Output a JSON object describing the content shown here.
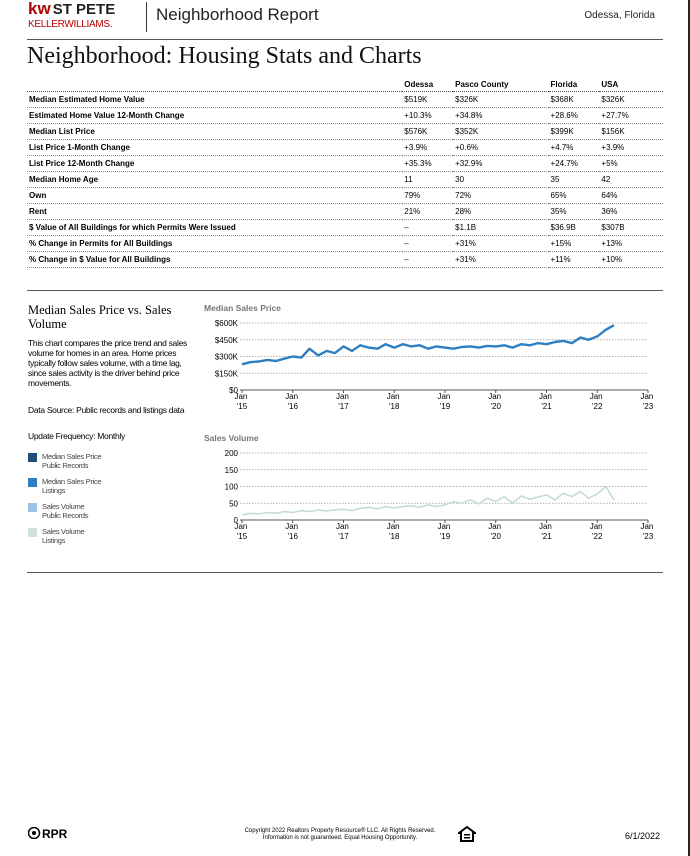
{
  "header": {
    "logo_kw": "kw",
    "logo_office": "ST PETE",
    "logo_brand": "KELLERWILLIAMS.",
    "report": "Neighborhood Report",
    "location": "Odessa, Florida"
  },
  "title": "Neighborhood: Housing Stats and Charts",
  "table": {
    "columns": [
      "Odessa",
      "Pasco County",
      "Florida",
      "USA"
    ],
    "rows": [
      [
        "Median Estimated Home Value",
        "$519K",
        "$326K",
        "$368K",
        "$326K"
      ],
      [
        "Estimated Home Value 12-Month Change",
        "+10.3%",
        "+34.8%",
        "+28.6%",
        "+27.7%"
      ],
      [
        "Median List Price",
        "$576K",
        "$352K",
        "$399K",
        "$156K"
      ],
      [
        "List Price 1-Month Change",
        "+3.9%",
        "+0.6%",
        "+4.7%",
        "+3.9%"
      ],
      [
        "List Price 12-Month Change",
        "+35.3%",
        "+32.9%",
        "+24.7%",
        "+5%"
      ],
      [
        "Median Home Age",
        "11",
        "30",
        "35",
        "42"
      ],
      [
        "Own",
        "79%",
        "72%",
        "65%",
        "64%"
      ],
      [
        "Rent",
        "21%",
        "28%",
        "35%",
        "36%"
      ],
      [
        "$ Value of All Buildings for which Permits Were Issued",
        "–",
        "$1.1B",
        "$36.9B",
        "$307B"
      ],
      [
        "% Change in Permits for All Buildings",
        "–",
        "+31%",
        "+15%",
        "+13%"
      ],
      [
        "% Change in $ Value for All Buildings",
        "–",
        "+31%",
        "+11%",
        "+10%"
      ]
    ]
  },
  "sidebar": {
    "title": "Median Sales Price vs. Sales Volume",
    "description": "This chart compares the price trend and sales volume for homes in an area. Home prices typically follow sales volume, with a time lag, since sales activity is the driver behind price movements.",
    "source": "Data Source: Public records and listings data",
    "frequency": "Update Frequency: Monthly",
    "legend": [
      {
        "name": "Median Sales Price",
        "sub": "Public Records",
        "color": "#1f4e79"
      },
      {
        "name": "Median Sales Price",
        "sub": "Listings",
        "color": "#2e7fc2"
      },
      {
        "name": "Sales Volume",
        "sub": "Public Records",
        "color": "#9cc3e5"
      },
      {
        "name": "Sales Volume",
        "sub": "Listings",
        "color": "#cfe3dc"
      }
    ]
  },
  "chart_data": [
    {
      "type": "line",
      "title": "Median Sales Price",
      "x": [
        2015,
        2015.17,
        2015.33,
        2015.5,
        2015.67,
        2015.83,
        2016,
        2016.17,
        2016.33,
        2016.5,
        2016.67,
        2016.83,
        2017,
        2017.17,
        2017.33,
        2017.5,
        2017.67,
        2017.83,
        2018,
        2018.17,
        2018.33,
        2018.5,
        2018.67,
        2018.83,
        2019,
        2019.17,
        2019.33,
        2019.5,
        2019.67,
        2019.83,
        2020,
        2020.17,
        2020.33,
        2020.5,
        2020.67,
        2020.83,
        2021,
        2021.17,
        2021.33,
        2021.5,
        2021.67,
        2021.83,
        2022,
        2022.17,
        2022.33
      ],
      "series": [
        {
          "color": "#2e7fc2",
          "values": [
            230000,
            250000,
            255000,
            270000,
            260000,
            280000,
            300000,
            290000,
            370000,
            310000,
            350000,
            330000,
            390000,
            350000,
            400000,
            380000,
            370000,
            410000,
            380000,
            410000,
            390000,
            400000,
            370000,
            390000,
            380000,
            370000,
            385000,
            390000,
            380000,
            395000,
            390000,
            400000,
            380000,
            410000,
            400000,
            420000,
            410000,
            430000,
            440000,
            420000,
            470000,
            450000,
            480000,
            540000,
            580000
          ]
        }
      ],
      "xlim": [
        2015,
        2023
      ],
      "xticks": [
        {
          "value": 2015,
          "label": "Jan '15"
        },
        {
          "value": 2016,
          "label": "Jan '16"
        },
        {
          "value": 2017,
          "label": "Jan '17"
        },
        {
          "value": 2018,
          "label": "Jan '18"
        },
        {
          "value": 2019,
          "label": "Jan '19"
        },
        {
          "value": 2020,
          "label": "Jan '20"
        },
        {
          "value": 2021,
          "label": "Jan '21"
        },
        {
          "value": 2022,
          "label": "Jan '22"
        },
        {
          "value": 2023,
          "label": "Jan '23"
        }
      ],
      "ylim": [
        0,
        600000
      ],
      "yticks": [
        {
          "value": 0,
          "label": "$0"
        },
        {
          "value": 150000,
          "label": "$150K"
        },
        {
          "value": 300000,
          "label": "$300K"
        },
        {
          "value": 450000,
          "label": "$450K"
        },
        {
          "value": 600000,
          "label": "$600K"
        }
      ],
      "grid": true
    },
    {
      "type": "line",
      "title": "Sales Volume",
      "x": [
        2015,
        2015.17,
        2015.33,
        2015.5,
        2015.67,
        2015.83,
        2016,
        2016.17,
        2016.33,
        2016.5,
        2016.67,
        2016.83,
        2017,
        2017.17,
        2017.33,
        2017.5,
        2017.67,
        2017.83,
        2018,
        2018.17,
        2018.33,
        2018.5,
        2018.67,
        2018.83,
        2019,
        2019.17,
        2019.33,
        2019.5,
        2019.67,
        2019.83,
        2020,
        2020.17,
        2020.33,
        2020.5,
        2020.67,
        2020.83,
        2021,
        2021.17,
        2021.33,
        2021.5,
        2021.67,
        2021.83,
        2022,
        2022.17,
        2022.33
      ],
      "series": [
        {
          "color": "#c5dcd6",
          "values": [
            15,
            20,
            18,
            22,
            20,
            25,
            22,
            28,
            25,
            30,
            27,
            30,
            32,
            28,
            35,
            38,
            33,
            40,
            36,
            40,
            42,
            38,
            45,
            40,
            45,
            55,
            50,
            60,
            48,
            65,
            55,
            70,
            50,
            72,
            62,
            68,
            75,
            60,
            80,
            70,
            85,
            65,
            78,
            100,
            60
          ]
        }
      ],
      "xlim": [
        2015,
        2023
      ],
      "xticks": [
        {
          "value": 2015,
          "label": "Jan '15"
        },
        {
          "value": 2016,
          "label": "Jan '16"
        },
        {
          "value": 2017,
          "label": "Jan '17"
        },
        {
          "value": 2018,
          "label": "Jan '18"
        },
        {
          "value": 2019,
          "label": "Jan '19"
        },
        {
          "value": 2020,
          "label": "Jan '20"
        },
        {
          "value": 2021,
          "label": "Jan '21"
        },
        {
          "value": 2022,
          "label": "Jan '22"
        },
        {
          "value": 2023,
          "label": "Jan '23"
        }
      ],
      "ylim": [
        0,
        200
      ],
      "yticks": [
        0,
        50,
        100,
        150,
        200
      ],
      "grid": true
    }
  ],
  "footer": {
    "brand": "RPR",
    "copyright": "Copyright 2022 Realtors Property Resource® LLC. All Rights Reserved.",
    "disclaimer": "Information is not guaranteed. Equal Housing Opportunity.",
    "date": "6/1/2022"
  }
}
